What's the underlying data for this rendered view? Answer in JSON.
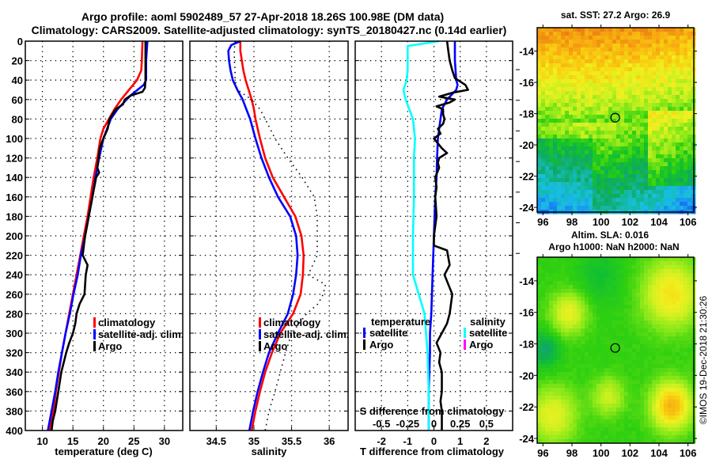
{
  "title": {
    "line1": "Argo profile: aoml 5902489_57 27-Apr-2018 18.26S 100.98E (DM data)",
    "line2": "Climatology: CARS2009. Satellite-adjusted climatology: synTS_20180427.nc (0.14d earlier)"
  },
  "colors": {
    "climatology": "#ff0000",
    "satellite": "#0000ff",
    "argo": "#000000",
    "satellite_salinity": "#00ffff",
    "argo_salinity": "#ff00ff"
  },
  "copyright": "©IMOS 19-Dec-2018 21:30:26",
  "chart_data": [
    {
      "type": "line",
      "name": "temperature-profile",
      "xlabel": "temperature (deg C)",
      "ylabel": "",
      "xlim": [
        7.2,
        33.0
      ],
      "ylim": [
        400,
        0
      ],
      "xticks": [
        10,
        15,
        20,
        25,
        30
      ],
      "yticks": [
        0,
        20,
        40,
        60,
        80,
        100,
        120,
        140,
        160,
        180,
        200,
        220,
        240,
        260,
        280,
        300,
        320,
        340,
        360,
        380,
        400
      ],
      "grid": true,
      "legend": {
        "placement": "center-right",
        "entries": [
          "climatology",
          "satellite-adj. clim.",
          "Argo"
        ]
      },
      "series": [
        {
          "name": "climatology",
          "color": "#ff0000",
          "depth": [
            0,
            20,
            30,
            40,
            50,
            60,
            70,
            80,
            90,
            100,
            120,
            140,
            160,
            180,
            200,
            220,
            240,
            260,
            280,
            300,
            320,
            340,
            360,
            380,
            400
          ],
          "values": [
            26.4,
            26.3,
            26.2,
            25.5,
            24.2,
            22.9,
            21.8,
            20.9,
            20.0,
            19.5,
            19.0,
            18.4,
            17.9,
            17.4,
            16.8,
            16.2,
            15.6,
            15.0,
            14.4,
            13.8,
            13.2,
            12.7,
            12.2,
            11.8,
            11.2
          ]
        },
        {
          "name": "satellite-adj. clim.",
          "color": "#0000ff",
          "depth": [
            0,
            20,
            40,
            45,
            50,
            55,
            60,
            70,
            80,
            90,
            100,
            120,
            140,
            160,
            180,
            200,
            220,
            240,
            260,
            280,
            300,
            320,
            340,
            360,
            380,
            400
          ],
          "values": [
            27.2,
            27.0,
            27.0,
            26.6,
            25.6,
            24.6,
            23.8,
            22.3,
            21.2,
            20.6,
            20.0,
            19.3,
            18.7,
            18.2,
            17.6,
            17.0,
            16.3,
            15.8,
            15.1,
            14.5,
            13.8,
            13.2,
            12.6,
            12.1,
            11.5,
            10.9
          ]
        },
        {
          "name": "Argo",
          "color": "#000000",
          "depth": [
            0,
            20,
            40,
            48,
            52,
            56,
            60,
            65,
            70,
            80,
            90,
            100,
            110,
            120,
            130,
            135,
            140,
            160,
            180,
            200,
            220,
            230,
            240,
            250,
            260,
            270,
            280,
            290,
            300,
            310,
            320,
            340,
            360,
            380,
            390,
            400
          ],
          "values": [
            26.9,
            26.9,
            26.9,
            26.8,
            26.4,
            24.4,
            23.5,
            23.2,
            22.0,
            21.0,
            20.7,
            20.0,
            19.4,
            19.2,
            19.0,
            19.3,
            18.8,
            18.2,
            17.6,
            17.0,
            16.6,
            17.4,
            17.1,
            17.0,
            16.9,
            16.1,
            15.6,
            15.4,
            15.0,
            14.4,
            13.9,
            13.1,
            12.6,
            12.1,
            11.7,
            11.5
          ]
        }
      ]
    },
    {
      "type": "line",
      "name": "salinity-profile",
      "xlabel": "salinity",
      "ylabel": "",
      "xlim": [
        34.15,
        36.25
      ],
      "ylim": [
        400,
        0
      ],
      "xticks": [
        34.5,
        35,
        35.5,
        36
      ],
      "grid": true,
      "legend": {
        "placement": "center-right",
        "entries": [
          "climatology",
          "satellite-adj. clim.",
          "Argo"
        ]
      },
      "series": [
        {
          "name": "climatology",
          "color": "#ff0000",
          "depth": [
            0,
            10,
            20,
            30,
            40,
            50,
            60,
            70,
            80,
            100,
            120,
            140,
            160,
            180,
            200,
            220,
            240,
            260,
            280,
            300,
            320,
            340,
            360,
            380,
            400
          ],
          "values": [
            34.82,
            34.82,
            34.84,
            34.86,
            34.89,
            34.93,
            34.97,
            35.0,
            35.02,
            35.08,
            35.15,
            35.25,
            35.4,
            35.55,
            35.63,
            35.66,
            35.65,
            35.62,
            35.52,
            35.35,
            35.24,
            35.15,
            35.08,
            35.02,
            34.97
          ]
        },
        {
          "name": "satellite-adj. clim.",
          "color": "#0000ff",
          "depth": [
            0,
            4,
            10,
            20,
            30,
            40,
            50,
            60,
            70,
            80,
            100,
            120,
            140,
            160,
            180,
            200,
            220,
            240,
            260,
            280,
            300,
            320,
            340,
            360,
            380,
            400
          ],
          "values": [
            34.82,
            34.7,
            34.66,
            34.67,
            34.69,
            34.72,
            34.78,
            34.85,
            34.9,
            34.95,
            35.02,
            35.1,
            35.2,
            35.32,
            35.48,
            35.56,
            35.58,
            35.56,
            35.52,
            35.45,
            35.32,
            35.2,
            35.12,
            35.05,
            34.99,
            34.94
          ]
        },
        {
          "name": "Argo",
          "color": "#000000",
          "style": "dotted",
          "depth": [
            0,
            10,
            20,
            30,
            40,
            50,
            60,
            70,
            80,
            100,
            120,
            140,
            160,
            180,
            200,
            220,
            240,
            250,
            260,
            270,
            280,
            300,
            320,
            340,
            360,
            380,
            400
          ],
          "values": [
            34.75,
            34.74,
            34.74,
            34.75,
            34.75,
            34.78,
            34.97,
            35.08,
            35.15,
            35.28,
            35.45,
            35.64,
            35.8,
            35.84,
            35.84,
            35.84,
            35.72,
            35.95,
            35.92,
            35.85,
            35.7,
            35.5,
            35.42,
            35.35,
            35.28,
            35.2,
            35.15
          ]
        }
      ]
    },
    {
      "type": "line",
      "name": "difference-profile",
      "xlabel": "T difference from climatology",
      "xlabel_top": "S difference from climatology",
      "xlim": [
        -3,
        3
      ],
      "xlim_salinity": [
        -0.75,
        0.75
      ],
      "ylim": [
        400,
        0
      ],
      "xticks": [
        -2,
        -1,
        0,
        1,
        2
      ],
      "xticks_salinity": [
        -0.5,
        -0.25,
        0,
        0.25,
        0.5
      ],
      "grid": true,
      "legend": {
        "temperature": {
          "heading": "temperature",
          "entries": [
            "satellite",
            "Argo"
          ],
          "placement": "center-left"
        },
        "salinity": {
          "heading": "salinity",
          "entries": [
            "satellite",
            "Argo"
          ],
          "placement": "center-right"
        }
      },
      "series": [
        {
          "name": "temperature satellite",
          "axis": "T",
          "color": "#0000ff",
          "depth": [
            0,
            20,
            40,
            45,
            50,
            60,
            70,
            80,
            100,
            120,
            140,
            160,
            200,
            240,
            280,
            300,
            320,
            360,
            400
          ],
          "values": [
            0.8,
            0.8,
            0.85,
            0.9,
            0.85,
            0.5,
            0.3,
            0.25,
            0.15,
            0.12,
            0.1,
            0.05,
            0.0,
            -0.05,
            -0.1,
            -0.15,
            -0.15,
            -0.2,
            -0.2
          ]
        },
        {
          "name": "temperature Argo",
          "axis": "T",
          "color": "#000000",
          "depth": [
            0,
            10,
            20,
            30,
            38,
            45,
            50,
            53,
            57,
            60,
            63,
            67,
            70,
            75,
            80,
            85,
            90,
            95,
            100,
            110,
            115,
            120,
            125,
            130,
            140,
            150,
            160,
            180,
            200,
            210,
            215,
            230,
            240,
            260,
            280,
            290,
            300,
            310,
            320,
            330,
            340,
            350,
            360,
            370,
            380,
            400
          ],
          "values": [
            0.5,
            0.55,
            0.6,
            0.7,
            0.8,
            1.2,
            1.3,
            0.7,
            0.2,
            0.8,
            0.6,
            0.1,
            0.35,
            0.35,
            0.4,
            0.35,
            0.15,
            0.25,
            0.0,
            0.3,
            0.5,
            0.2,
            0.15,
            0.2,
            0.05,
            0.1,
            0.05,
            0.1,
            0.0,
            0.0,
            0.5,
            0.6,
            0.4,
            0.7,
            0.6,
            0.5,
            0.3,
            0.1,
            0.25,
            0.2,
            0.3,
            0.3,
            0.3,
            0.25,
            0.3,
            0.3
          ]
        },
        {
          "name": "salinity satellite",
          "axis": "S",
          "color": "#00ffff",
          "depth": [
            0,
            5,
            30,
            40,
            50,
            60,
            80,
            90,
            100,
            120,
            160,
            200,
            240,
            280,
            320,
            360,
            400
          ],
          "values": [
            0.05,
            -0.25,
            -0.25,
            -0.26,
            -0.29,
            -0.27,
            -0.2,
            -0.19,
            -0.18,
            -0.19,
            -0.19,
            -0.2,
            -0.2,
            -0.09,
            -0.06,
            -0.05,
            -0.05
          ]
        }
      ]
    },
    {
      "type": "heatmap",
      "name": "sst-map",
      "title": "sat. SST: 27.2 Argo: 26.9",
      "xlim": [
        95.6,
        106.4
      ],
      "ylim": [
        -12.5,
        -24.3
      ],
      "xticks": [
        96,
        98,
        100,
        102,
        104,
        106
      ],
      "yticks": [
        -14,
        -16,
        -18,
        -20,
        -22,
        -24
      ],
      "marker": {
        "lon": 100.98,
        "lat": -18.26
      }
    },
    {
      "type": "heatmap",
      "name": "sla-map",
      "title_line1": "Altim. SLA: 0.016",
      "title_line2": "Argo h1000: NaN h2000: NaN",
      "xlim": [
        95.6,
        106.4
      ],
      "ylim": [
        -12.5,
        -24.3
      ],
      "xticks": [
        96,
        98,
        100,
        102,
        104,
        106
      ],
      "yticks": [
        -14,
        -16,
        -18,
        -20,
        -22,
        -24
      ],
      "marker": {
        "lon": 100.98,
        "lat": -18.26
      }
    }
  ]
}
